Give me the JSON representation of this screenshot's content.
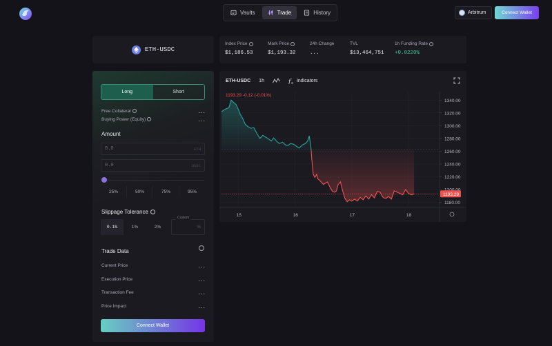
{
  "nav": {
    "items": [
      {
        "label": "Vaults",
        "icon": "vault-icon",
        "active": false
      },
      {
        "label": "Trade",
        "icon": "trade-icon",
        "active": true
      },
      {
        "label": "History",
        "icon": "history-icon",
        "active": false
      }
    ]
  },
  "header": {
    "network_label": "Arbitrum",
    "connect_label": "Connect Wallet"
  },
  "market": {
    "pair": "ETH-USDC",
    "stats": [
      {
        "label": "Index Price",
        "value": "$1,186.53",
        "info": true,
        "color": "#ececf2"
      },
      {
        "label": "Mark Price",
        "value": "$1,193.32",
        "info": true,
        "color": "#ececf2"
      },
      {
        "label": "24h Change",
        "value": "...",
        "info": false,
        "color": "#ececf2"
      },
      {
        "label": "TVL",
        "value": "$13,464,751",
        "info": false,
        "color": "#ececf2"
      },
      {
        "label": "1h Funding Rate",
        "value": "+0.0220%",
        "info": true,
        "color": "#3fd19a"
      }
    ]
  },
  "trade_panel": {
    "tabs": [
      {
        "label": "Long",
        "active": true
      },
      {
        "label": "Short",
        "active": false
      }
    ],
    "free_collateral_label": "Free Collateral",
    "buying_power_label": "Buying Power (Equity)",
    "placeholder_dots": "...",
    "amount_title": "Amount",
    "amount_fields": [
      {
        "value": "0.0",
        "unit": "ETH"
      },
      {
        "value": "0.0",
        "unit": "USDC"
      }
    ],
    "percentages": [
      "25%",
      "50%",
      "75%",
      "95%"
    ],
    "slippage_title": "Slippage Tolerance",
    "slippage_options": [
      {
        "label": "0.1%",
        "active": true
      },
      {
        "label": "1%",
        "active": false
      },
      {
        "label": "2%",
        "active": false
      }
    ],
    "slippage_custom_label": "Custom",
    "slippage_custom_suffix": "%",
    "trade_data_title": "Trade Data",
    "trade_data_rows": [
      {
        "label": "Current Price",
        "value": "..."
      },
      {
        "label": "Execution Price",
        "value": "..."
      },
      {
        "label": "Transaction Fee",
        "value": "..."
      },
      {
        "label": "Price Impact",
        "value": "..."
      }
    ],
    "connect_label": "Connect Wallet"
  },
  "chart_toolbar": {
    "symbol": "ETH-USDC",
    "interval": "1h",
    "indicators_label": "Indicators"
  },
  "chart_data": {
    "type": "line",
    "title": "ETH-USDC",
    "legend": "1193.29 -0.12 (-0.01%)",
    "last_price_label": "1193.29",
    "ylim": [
      1172,
      1350
    ],
    "y_ticks": [
      1180,
      1200,
      1220,
      1240,
      1260,
      1280,
      1300,
      1320,
      1340
    ],
    "x_ticks": [
      "15",
      "16",
      "17",
      "18"
    ],
    "x_tick_values": [
      15,
      16,
      17,
      18
    ],
    "baseline": 1262,
    "last_price": 1193.29,
    "colors": {
      "up": "#26a69a",
      "down": "#ef5350",
      "price_tag": "#ef5350"
    },
    "series": [
      {
        "x": [
          14.7,
          14.77,
          14.83,
          14.87,
          14.92,
          14.96,
          15.0,
          15.03,
          15.07,
          15.12,
          15.16,
          15.22,
          15.27,
          15.33,
          15.38,
          15.43,
          15.48,
          15.52,
          15.58,
          15.62,
          15.67,
          15.72,
          15.78,
          15.83,
          15.87,
          15.92,
          15.97,
          16.02,
          16.07,
          16.13,
          16.18,
          16.22,
          16.25,
          16.28,
          16.3,
          16.32,
          16.35,
          16.38,
          16.4,
          16.44,
          16.5,
          16.57,
          16.62,
          16.66,
          16.7,
          16.73,
          16.76,
          16.8,
          16.84,
          16.88,
          16.92,
          16.96,
          17.0,
          17.05,
          17.1,
          17.15,
          17.2,
          17.25,
          17.3,
          17.35,
          17.4,
          17.45,
          17.5,
          17.55,
          17.6,
          17.65,
          17.7,
          17.75,
          17.8,
          17.85,
          17.9,
          17.95,
          18.0,
          18.05,
          18.1
        ],
        "y": [
          1322,
          1326,
          1328,
          1340,
          1336,
          1333,
          1325,
          1318,
          1312,
          1302,
          1299,
          1296,
          1297,
          1287,
          1280,
          1285,
          1282,
          1280,
          1276,
          1281,
          1276,
          1272,
          1274,
          1270,
          1269,
          1272,
          1271,
          1268,
          1265,
          1270,
          1272,
          1276,
          1284,
          1265,
          1242,
          1224,
          1219,
          1224,
          1217,
          1214,
          1208,
          1212,
          1203,
          1197,
          1196,
          1198,
          1208,
          1212,
          1198,
          1186,
          1181,
          1184,
          1182,
          1185,
          1182,
          1188,
          1184,
          1190,
          1185,
          1192,
          1187,
          1197,
          1196,
          1188,
          1186,
          1189,
          1185,
          1198,
          1196,
          1194,
          1192,
          1200,
          1194,
          1192,
          1193.29
        ]
      }
    ]
  }
}
